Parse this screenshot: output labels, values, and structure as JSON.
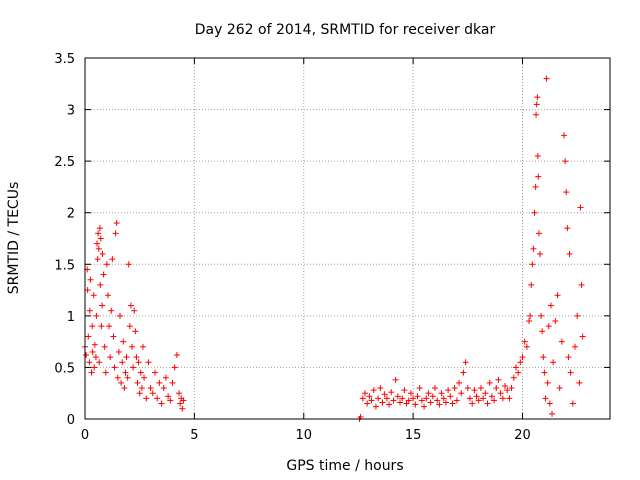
{
  "chart_data": {
    "type": "scatter",
    "title": "Day 262 of 2014, SRMTID for receiver dkar",
    "xlabel": "GPS time / hours",
    "ylabel": "SRMTID / TECUs",
    "xlim": [
      0,
      24
    ],
    "ylim": [
      0,
      3.5
    ],
    "grid": true,
    "marker": "+",
    "x_ticks": [
      0,
      5,
      10,
      15,
      20
    ],
    "x_tick_labels": [
      "0",
      "5",
      "10",
      "15",
      "20"
    ],
    "y_ticks": [
      0,
      0.5,
      1,
      1.5,
      2,
      2.5,
      3,
      3.5
    ],
    "y_tick_labels": [
      "0",
      "0.5",
      "1",
      "1.5",
      "2",
      "2.5",
      "3",
      "3.5"
    ],
    "series": [
      {
        "name": "SRMTID",
        "color": "#ff0000",
        "points": [
          [
            0.0,
            0.7
          ],
          [
            0.05,
            0.62
          ],
          [
            0.1,
            1.45
          ],
          [
            0.12,
            1.25
          ],
          [
            0.15,
            0.8
          ],
          [
            0.2,
            0.55
          ],
          [
            0.22,
            1.05
          ],
          [
            0.25,
            1.35
          ],
          [
            0.3,
            0.45
          ],
          [
            0.33,
            0.9
          ],
          [
            0.35,
            0.65
          ],
          [
            0.4,
            1.2
          ],
          [
            0.42,
            0.5
          ],
          [
            0.45,
            0.72
          ],
          [
            0.5,
            0.6
          ],
          [
            0.52,
            1.0
          ],
          [
            0.55,
            1.7
          ],
          [
            0.58,
            1.55
          ],
          [
            0.6,
            1.8
          ],
          [
            0.63,
            1.65
          ],
          [
            0.65,
            0.55
          ],
          [
            0.68,
            1.85
          ],
          [
            0.7,
            1.3
          ],
          [
            0.72,
            1.75
          ],
          [
            0.75,
            0.9
          ],
          [
            0.78,
            1.1
          ],
          [
            0.8,
            1.6
          ],
          [
            0.85,
            1.4
          ],
          [
            0.9,
            0.7
          ],
          [
            0.95,
            0.45
          ],
          [
            1.0,
            1.5
          ],
          [
            1.05,
            1.2
          ],
          [
            1.1,
            0.9
          ],
          [
            1.15,
            0.6
          ],
          [
            1.2,
            1.05
          ],
          [
            1.25,
            1.55
          ],
          [
            1.3,
            0.8
          ],
          [
            1.35,
            0.5
          ],
          [
            1.4,
            1.8
          ],
          [
            1.45,
            1.9
          ],
          [
            1.5,
            0.4
          ],
          [
            1.55,
            0.65
          ],
          [
            1.6,
            1.0
          ],
          [
            1.65,
            0.35
          ],
          [
            1.7,
            0.55
          ],
          [
            1.75,
            0.75
          ],
          [
            1.8,
            0.3
          ],
          [
            1.85,
            0.45
          ],
          [
            1.9,
            0.6
          ],
          [
            1.95,
            0.4
          ],
          [
            2.0,
            1.5
          ],
          [
            2.05,
            0.9
          ],
          [
            2.1,
            1.1
          ],
          [
            2.15,
            0.7
          ],
          [
            2.2,
            0.5
          ],
          [
            2.25,
            1.05
          ],
          [
            2.3,
            0.85
          ],
          [
            2.35,
            0.6
          ],
          [
            2.4,
            0.35
          ],
          [
            2.45,
            0.55
          ],
          [
            2.5,
            0.25
          ],
          [
            2.55,
            0.45
          ],
          [
            2.6,
            0.3
          ],
          [
            2.65,
            0.7
          ],
          [
            2.7,
            0.4
          ],
          [
            2.8,
            0.2
          ],
          [
            2.9,
            0.55
          ],
          [
            3.0,
            0.3
          ],
          [
            3.1,
            0.25
          ],
          [
            3.2,
            0.45
          ],
          [
            3.3,
            0.2
          ],
          [
            3.4,
            0.35
          ],
          [
            3.5,
            0.15
          ],
          [
            3.6,
            0.3
          ],
          [
            3.7,
            0.4
          ],
          [
            3.8,
            0.22
          ],
          [
            3.9,
            0.18
          ],
          [
            4.0,
            0.35
          ],
          [
            4.1,
            0.5
          ],
          [
            4.2,
            0.62
          ],
          [
            4.3,
            0.25
          ],
          [
            4.35,
            0.15
          ],
          [
            4.4,
            0.2
          ],
          [
            4.45,
            0.1
          ],
          [
            4.5,
            0.18
          ],
          [
            12.55,
            0.0
          ],
          [
            12.6,
            0.02
          ],
          [
            12.7,
            0.2
          ],
          [
            12.8,
            0.25
          ],
          [
            12.9,
            0.15
          ],
          [
            13.0,
            0.22
          ],
          [
            13.1,
            0.18
          ],
          [
            13.2,
            0.28
          ],
          [
            13.3,
            0.12
          ],
          [
            13.4,
            0.2
          ],
          [
            13.5,
            0.3
          ],
          [
            13.6,
            0.16
          ],
          [
            13.7,
            0.24
          ],
          [
            13.8,
            0.2
          ],
          [
            13.9,
            0.14
          ],
          [
            14.0,
            0.26
          ],
          [
            14.1,
            0.18
          ],
          [
            14.2,
            0.38
          ],
          [
            14.3,
            0.22
          ],
          [
            14.4,
            0.16
          ],
          [
            14.5,
            0.2
          ],
          [
            14.6,
            0.28
          ],
          [
            14.7,
            0.15
          ],
          [
            14.8,
            0.18
          ],
          [
            14.9,
            0.25
          ],
          [
            15.0,
            0.2
          ],
          [
            15.1,
            0.14
          ],
          [
            15.2,
            0.22
          ],
          [
            15.3,
            0.3
          ],
          [
            15.4,
            0.18
          ],
          [
            15.5,
            0.12
          ],
          [
            15.6,
            0.2
          ],
          [
            15.7,
            0.25
          ],
          [
            15.8,
            0.16
          ],
          [
            15.9,
            0.22
          ],
          [
            16.0,
            0.3
          ],
          [
            16.1,
            0.18
          ],
          [
            16.2,
            0.14
          ],
          [
            16.3,
            0.25
          ],
          [
            16.4,
            0.2
          ],
          [
            16.5,
            0.16
          ],
          [
            16.6,
            0.28
          ],
          [
            16.7,
            0.22
          ],
          [
            16.8,
            0.15
          ],
          [
            16.9,
            0.3
          ],
          [
            17.0,
            0.18
          ],
          [
            17.1,
            0.35
          ],
          [
            17.2,
            0.25
          ],
          [
            17.3,
            0.45
          ],
          [
            17.4,
            0.55
          ],
          [
            17.5,
            0.3
          ],
          [
            17.6,
            0.2
          ],
          [
            17.7,
            0.15
          ],
          [
            17.8,
            0.28
          ],
          [
            17.9,
            0.22
          ],
          [
            18.0,
            0.18
          ],
          [
            18.1,
            0.3
          ],
          [
            18.2,
            0.2
          ],
          [
            18.3,
            0.25
          ],
          [
            18.4,
            0.15
          ],
          [
            18.5,
            0.35
          ],
          [
            18.6,
            0.22
          ],
          [
            18.7,
            0.18
          ],
          [
            18.8,
            0.3
          ],
          [
            18.9,
            0.38
          ],
          [
            19.0,
            0.25
          ],
          [
            19.1,
            0.2
          ],
          [
            19.2,
            0.32
          ],
          [
            19.3,
            0.28
          ],
          [
            19.4,
            0.2
          ],
          [
            19.5,
            0.3
          ],
          [
            19.6,
            0.4
          ],
          [
            19.7,
            0.5
          ],
          [
            19.8,
            0.45
          ],
          [
            19.9,
            0.55
          ],
          [
            20.0,
            0.6
          ],
          [
            20.1,
            0.75
          ],
          [
            20.2,
            0.7
          ],
          [
            20.3,
            0.95
          ],
          [
            20.35,
            1.0
          ],
          [
            20.4,
            1.3
          ],
          [
            20.45,
            1.5
          ],
          [
            20.5,
            1.65
          ],
          [
            20.55,
            2.0
          ],
          [
            20.6,
            2.25
          ],
          [
            20.62,
            2.95
          ],
          [
            20.65,
            3.05
          ],
          [
            20.68,
            3.12
          ],
          [
            20.7,
            2.55
          ],
          [
            20.72,
            2.35
          ],
          [
            20.75,
            1.8
          ],
          [
            20.8,
            1.6
          ],
          [
            20.85,
            1.0
          ],
          [
            20.9,
            0.85
          ],
          [
            20.95,
            0.6
          ],
          [
            21.0,
            0.45
          ],
          [
            21.05,
            0.2
          ],
          [
            21.1,
            3.3
          ],
          [
            21.15,
            0.35
          ],
          [
            21.2,
            0.9
          ],
          [
            21.25,
            0.15
          ],
          [
            21.3,
            1.1
          ],
          [
            21.35,
            0.05
          ],
          [
            21.4,
            0.55
          ],
          [
            21.5,
            0.95
          ],
          [
            21.6,
            1.2
          ],
          [
            21.7,
            0.3
          ],
          [
            21.8,
            0.75
          ],
          [
            21.9,
            2.75
          ],
          [
            21.95,
            2.5
          ],
          [
            22.0,
            2.2
          ],
          [
            22.05,
            1.85
          ],
          [
            22.1,
            0.6
          ],
          [
            22.15,
            1.6
          ],
          [
            22.2,
            0.45
          ],
          [
            22.3,
            0.15
          ],
          [
            22.4,
            0.7
          ],
          [
            22.5,
            1.0
          ],
          [
            22.6,
            0.35
          ],
          [
            22.65,
            2.05
          ],
          [
            22.7,
            1.3
          ],
          [
            22.75,
            0.8
          ]
        ]
      }
    ]
  }
}
